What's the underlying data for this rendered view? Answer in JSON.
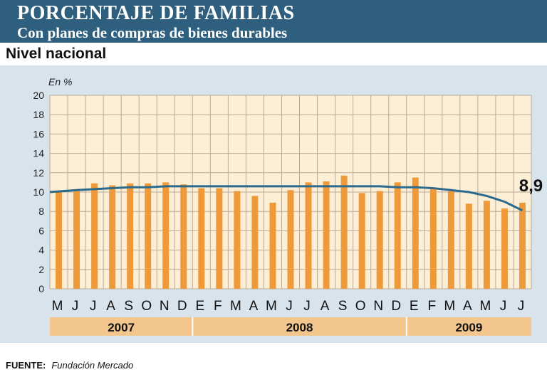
{
  "header": {
    "title": "PORCENTAJE DE FAMILIAS",
    "subtitle": "Con planes de compras de bienes durables"
  },
  "section": "Nivel nacional",
  "source": {
    "label": "FUENTE:",
    "value": "Fundación Mercado"
  },
  "colors": {
    "header": "#2e5f7f",
    "bar": "#ee9a3a",
    "trend": "#2b6a8c",
    "plot_bg": "#fdeed6",
    "year_band": "#f3c68e"
  },
  "chart_data": {
    "type": "bar",
    "ylabel": "En %",
    "ylim": [
      0,
      20
    ],
    "yticks": [
      0,
      2,
      4,
      6,
      8,
      10,
      12,
      14,
      16,
      18,
      20
    ],
    "grid": true,
    "categories": [
      "M",
      "J",
      "J",
      "A",
      "S",
      "O",
      "N",
      "D",
      "E",
      "F",
      "M",
      "A",
      "M",
      "J",
      "J",
      "A",
      "S",
      "O",
      "N",
      "D",
      "E",
      "F",
      "M",
      "A",
      "M",
      "J",
      "J"
    ],
    "years": [
      {
        "label": "2007",
        "months": 8
      },
      {
        "label": "2008",
        "months": 12
      },
      {
        "label": "2009",
        "months": 7
      }
    ],
    "series": [
      {
        "type": "bar",
        "values": [
          10.1,
          10.1,
          10.9,
          10.7,
          10.9,
          10.9,
          11.0,
          10.8,
          10.4,
          10.4,
          10.1,
          9.6,
          8.9,
          10.2,
          11.0,
          11.1,
          11.7,
          9.9,
          10.1,
          11.0,
          11.5,
          10.4,
          10.1,
          8.8,
          9.1,
          8.3,
          8.9
        ]
      },
      {
        "type": "line",
        "values": [
          10.0,
          10.2,
          10.3,
          10.4,
          10.5,
          10.5,
          10.6,
          10.6,
          10.6,
          10.6,
          10.6,
          10.6,
          10.6,
          10.6,
          10.6,
          10.6,
          10.6,
          10.6,
          10.6,
          10.5,
          10.5,
          10.4,
          10.2,
          10.0,
          9.6,
          9.0,
          8.1
        ]
      }
    ],
    "annotation": "8,9"
  }
}
